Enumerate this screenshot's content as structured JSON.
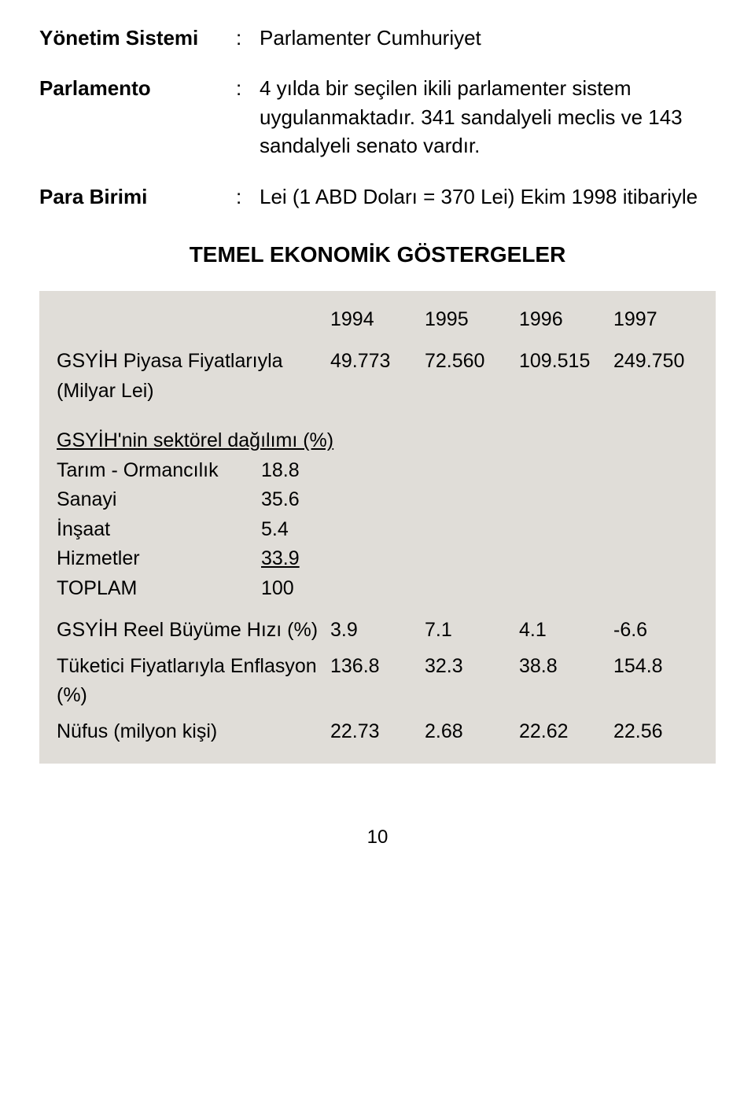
{
  "definitions": [
    {
      "label": "Yönetim Sistemi",
      "value": "Parlamenter Cumhuriyet"
    },
    {
      "label": "Parlamento",
      "value": "4 yılda bir seçilen ikili parlamenter sistem uygulanmaktadır. 341 sandalyeli meclis ve 143 sandalyeli senato vardır."
    },
    {
      "label": "Para Birimi",
      "value": "Lei (1 ABD Doları = 370 Lei) Ekim 1998 itibariyle"
    }
  ],
  "section_title": "TEMEL EKONOMİK GÖSTERGELER",
  "table": {
    "background_color": "#e0ddd8",
    "text_color": "#000000",
    "font_size_pt": 19,
    "years": [
      "1994",
      "1995",
      "1996",
      "1997"
    ],
    "rows": [
      {
        "label": "GSYİH Piyasa Fiyatlarıyla (Milyar Lei)",
        "values": [
          "49.773",
          "72.560",
          "109.515",
          "249.750"
        ]
      },
      {
        "sector_title": "GSYİH'nin sektörel dağılımı (%)"
      },
      {
        "sector": "Tarım - Ormancılık",
        "val": "18.8"
      },
      {
        "sector": "Sanayi",
        "val": "35.6"
      },
      {
        "sector": "İnşaat",
        "val": "5.4"
      },
      {
        "sector": "Hizmetler",
        "val": "33.9",
        "underline": true
      },
      {
        "sector": "TOPLAM",
        "val": "100"
      },
      {
        "label": "GSYİH Reel Büyüme Hızı (%)",
        "values": [
          "3.9",
          "7.1",
          "4.1",
          "-6.6"
        ]
      },
      {
        "label": "Tüketici Fiyatlarıyla Enflasyon (%)",
        "values": [
          "136.8",
          "32.3",
          "38.8",
          "154.8"
        ]
      },
      {
        "label": "Nüfus (milyon kişi)",
        "values": [
          "22.73",
          "2.68",
          "22.62",
          "22.56"
        ]
      }
    ]
  },
  "page_number": "10"
}
